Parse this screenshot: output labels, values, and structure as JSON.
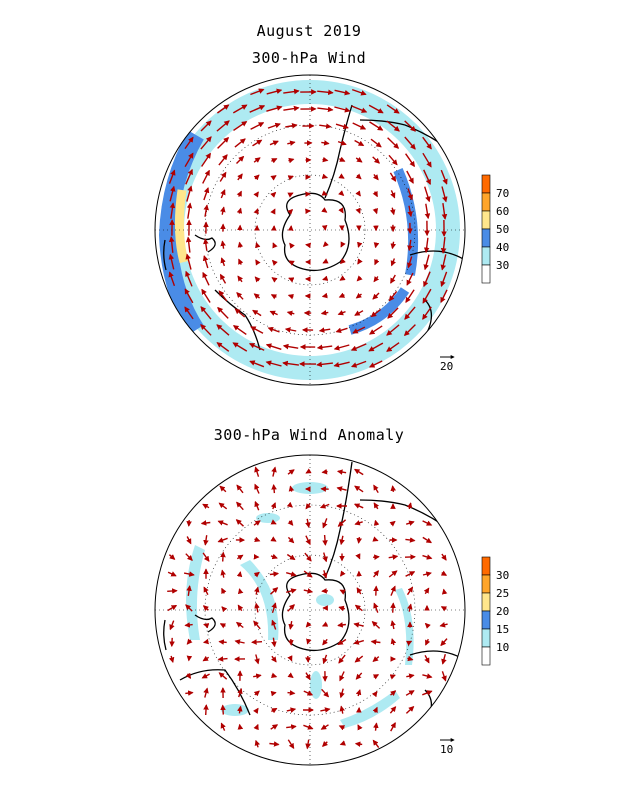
{
  "header": {
    "date_title": "August 2019",
    "top_title": "300-hPa Wind",
    "bottom_title": "300-hPa Wind Anomaly"
  },
  "top_panel": {
    "colorbar": {
      "ticks": [
        "70",
        "60",
        "50",
        "40",
        "30"
      ],
      "colors": [
        "#ff6a00",
        "#ffa52a",
        "#ffe68c",
        "#4a8ce6",
        "#aeeaf2",
        "#ffffff"
      ]
    },
    "reference_vector": "20"
  },
  "bottom_panel": {
    "colorbar": {
      "ticks": [
        "30",
        "25",
        "20",
        "15",
        "10"
      ],
      "colors": [
        "#ff6a00",
        "#ffa52a",
        "#ffe68c",
        "#4a8ce6",
        "#aeeaf2",
        "#ffffff"
      ]
    },
    "reference_vector": "10"
  },
  "colors": {
    "arrow": "#b00000",
    "coast": "#000000",
    "shade_light": "#aeeaf2",
    "shade_mid": "#4a8ce6",
    "shade_high": "#ffe68c"
  }
}
